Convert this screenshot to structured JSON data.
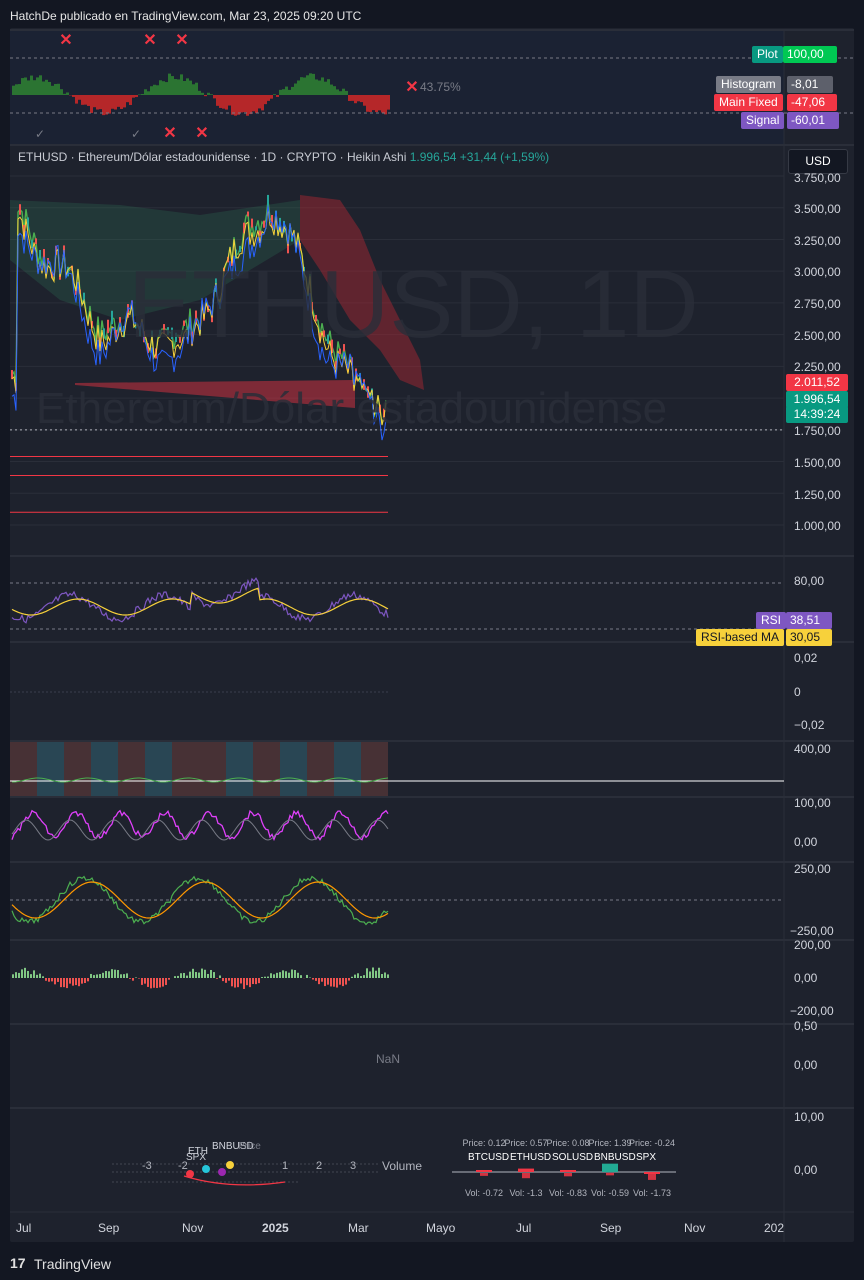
{
  "header": {
    "text": "HatchDe publicado en TradingView.com, Mar 23, 2025 09:20 UTC"
  },
  "top_panel": {
    "percent_label": "43.75%",
    "legend": [
      {
        "label": "Plot",
        "value": "100,00",
        "color": "#00c853"
      },
      {
        "label": "Histogram",
        "value": "-8,01",
        "color": "#787b86"
      },
      {
        "label": "Main Fixed",
        "value": "-47,06",
        "color": "#f23645"
      },
      {
        "label": "Signal",
        "value": "-60,01",
        "color": "#7e57c2"
      }
    ]
  },
  "symbol": {
    "name": "ETHUSD · Ethereum/Dólar estadounidense · 1D · CRYPTO · Heikin Ashi",
    "price": "1.996,54",
    "change": "+31,44 (+1,59%)",
    "currency": "USD",
    "watermark_ticker": "ETHUSD, 1D",
    "watermark_name": "Ethereum/Dólar estadounidense"
  },
  "price_axis": {
    "labels": [
      "3.750,00",
      "3.500,00",
      "3.250,00",
      "3.000,00",
      "2.750,00",
      "2.500,00",
      "2.250,00",
      "1.750,00",
      "1.500,00",
      "1.250,00",
      "1.000,00"
    ],
    "tag_high": {
      "value": "2.011,52",
      "color": "#f23645"
    },
    "tag_price": {
      "value": "1.996,54",
      "countdown": "14:39:24",
      "color": "#089981"
    }
  },
  "rsi_panel": {
    "axis": [
      "80,00"
    ],
    "rsi_label": "RSI",
    "rsi_value": "38,51",
    "ma_label": "RSI-based MA",
    "ma_value": "30,05"
  },
  "panel3": {
    "axis": [
      "0,02",
      "0",
      "−0,02"
    ]
  },
  "panel4": {
    "axis": [
      "400,00"
    ]
  },
  "panel5": {
    "axis": [
      "100,00",
      "0,00"
    ]
  },
  "panel6": {
    "axis": [
      "250,00",
      "−250,00"
    ]
  },
  "panel7": {
    "axis": [
      "200,00",
      "0,00",
      "−200,00"
    ]
  },
  "panel8": {
    "axis": [
      "0,50",
      "0,00"
    ],
    "nan": "NaN"
  },
  "panel9": {
    "axis": [
      "10,00",
      "0,00"
    ],
    "scatter_ticks": [
      "-3",
      "-2",
      "1",
      "2",
      "3"
    ],
    "scatter_left_labels": [
      "ETH",
      "BNBUSD",
      "SPX",
      "Price"
    ],
    "volume_label": "Volume",
    "bars": [
      {
        "name": "BTCUSD",
        "price": "Price: 0.12",
        "vol": "Vol: -0.72",
        "val": 0.12,
        "volv": -0.72,
        "color": "#f23645"
      },
      {
        "name": "ETHUSD",
        "price": "Price: 0.57",
        "vol": "Vol: -1.3",
        "val": 0.57,
        "volv": -1.3,
        "color": "#f23645"
      },
      {
        "name": "SOLUSD",
        "price": "Price: 0.08",
        "vol": "Vol: -0.83",
        "val": 0.08,
        "volv": -0.83,
        "color": "#f23645"
      },
      {
        "name": "BNBUSD",
        "price": "Price: 1.39",
        "vol": "Vol: -0.59",
        "val": 1.39,
        "volv": -0.59,
        "color": "#22ab94"
      },
      {
        "name": "SPX",
        "price": "Price: -0.24",
        "vol": "Vol: -1.73",
        "val": -0.24,
        "volv": -1.73,
        "color": "#f23645"
      }
    ]
  },
  "time_axis": [
    "Jul",
    "Sep",
    "Nov",
    "2025",
    "Mar",
    "Mayo",
    "Jul",
    "Sep",
    "Nov",
    "202"
  ],
  "footer": {
    "logo": "17",
    "brand": "TradingView"
  },
  "chart_data": {
    "type": "line",
    "title": "ETHUSD · Ethereum/Dólar estadounidense · 1D · CRYPTO · Heikin Ashi",
    "xlabel": "",
    "ylabel": "",
    "x": [
      "Jul",
      "Sep",
      "Nov",
      "2025",
      "Mar"
    ],
    "series": [
      {
        "name": "ETHUSD",
        "values": [
          3450,
          2600,
          2450,
          3600,
          2100
        ]
      }
    ],
    "ylim": [
      900,
      3800
    ],
    "horizontal_levels": [
      1750,
      1540,
      1390,
      1100
    ],
    "grid": true
  }
}
